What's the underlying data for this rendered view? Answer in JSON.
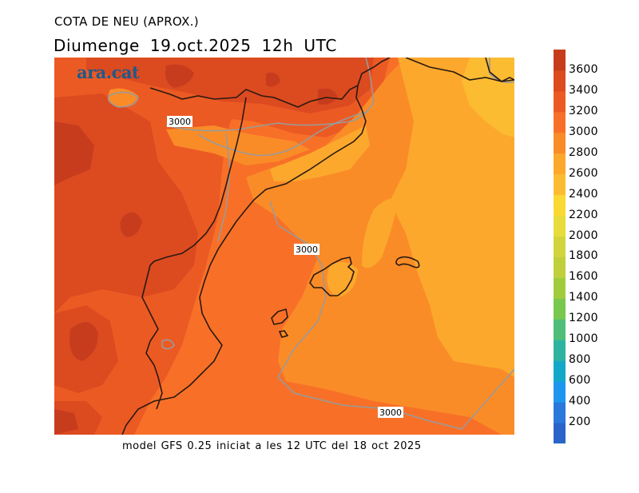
{
  "header": {
    "title": "COTA DE NEU (APROX.)",
    "subtitle": "Diumenge  19.oct.2025 12h UTC"
  },
  "logo": "ara.cat",
  "footer": "model GFS 0.25 iniciat a les 12 UTC del 18 oct 2025",
  "map": {
    "variable": "snow level (m)",
    "contour_label": "3000",
    "contour_labels": [
      "3000",
      "3000",
      "3000"
    ],
    "region": "Catalonia, Valencia, Balearic Islands, southern France",
    "coastline_color": "#2a1a10",
    "contour_color": "#9a9a9a"
  },
  "colorbar": {
    "ticks": [
      "3600",
      "3400",
      "3200",
      "3000",
      "2800",
      "2600",
      "2400",
      "2200",
      "2000",
      "1800",
      "1600",
      "1400",
      "1200",
      "1000",
      "800",
      "600",
      "400",
      "200"
    ],
    "colors": [
      "#2a64c8",
      "#2a78dc",
      "#1e96f0",
      "#14a8c8",
      "#2db4a0",
      "#50be78",
      "#78c850",
      "#a0cc3c",
      "#c0d03c",
      "#d2d43c",
      "#e8dc3c",
      "#fcd832",
      "#fcbc32",
      "#fca82d",
      "#fa8c28",
      "#f87028",
      "#ec5a24",
      "#dc4a20",
      "#c83c1e"
    ]
  }
}
